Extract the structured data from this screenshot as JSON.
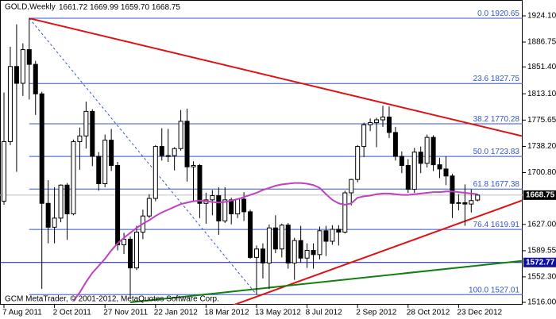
{
  "chart_data": {
    "type": "candlestick",
    "title": "GOLD,Weekly",
    "header_ohlc": [
      "1661.72",
      "1669.99",
      "1659.70",
      "1668.75"
    ],
    "footer": "GCM MetaTrader, © 2001-2012, MetaQuotes Software Corp.",
    "categories": [
      "7 Aug 2011",
      null,
      null,
      null,
      null,
      null,
      null,
      null,
      "2 Oct 2011",
      null,
      null,
      null,
      null,
      null,
      null,
      null,
      "27 Nov 2011",
      null,
      null,
      null,
      null,
      null,
      null,
      null,
      "22 Jan 2012",
      null,
      null,
      null,
      null,
      null,
      null,
      null,
      "18 Mar 2012",
      null,
      null,
      null,
      null,
      null,
      null,
      null,
      "13 May 2012",
      null,
      null,
      null,
      null,
      null,
      null,
      null,
      "8 Jul 2012",
      null,
      null,
      null,
      null,
      null,
      null,
      null,
      "2 Sep 2012",
      null,
      null,
      null,
      null,
      null,
      null,
      null,
      "28 Oct 2012",
      null,
      null,
      null,
      null,
      null,
      null,
      null,
      "23 Dec 2012",
      null,
      null,
      null
    ],
    "open": [
      1660,
      1745,
      1852,
      1828,
      1876,
      1855,
      1813,
      1657,
      1623,
      1636,
      1683,
      1642,
      1745,
      1753,
      1788,
      1724,
      1685,
      1747,
      1711,
      1598,
      1606,
      1565,
      1616,
      1639,
      1664,
      1738,
      1725,
      1725,
      1735,
      1774,
      1709,
      1711,
      1657,
      1662,
      1668,
      1632,
      1662,
      1642,
      1663,
      1645,
      1580,
      1592,
      1572,
      1622,
      1592,
      1626,
      1572,
      1604,
      1579,
      1590,
      1584,
      1618,
      1603,
      1620,
      1616,
      1672,
      1691,
      1738,
      1769,
      1772,
      1776,
      1780,
      1758,
      1724,
      1711,
      1677,
      1730,
      1714,
      1751,
      1712,
      1706,
      1696,
      1657,
      1658,
      1656,
      1661.72
    ],
    "high": [
      1815,
      1880,
      1912,
      1885,
      1920.65,
      1860,
      1816,
      1690,
      1680,
      1684,
      1686,
      1748,
      1765,
      1802,
      1791,
      1730,
      1755,
      1763,
      1716,
      1615,
      1610,
      1625,
      1648,
      1670,
      1740,
      1764,
      1763,
      1737,
      1790,
      1792,
      1717,
      1713,
      1672,
      1676,
      1680,
      1680,
      1665,
      1664,
      1673,
      1648,
      1597,
      1600,
      1627,
      1640,
      1628,
      1629,
      1608,
      1625,
      1600,
      1600,
      1624,
      1625,
      1626,
      1626,
      1675,
      1692,
      1740,
      1772,
      1778,
      1779,
      1796,
      1795,
      1766,
      1731,
      1720,
      1736,
      1738,
      1755,
      1754,
      1722,
      1724,
      1699,
      1670,
      1684,
      1677,
      1669.99
    ],
    "low": [
      1655,
      1740,
      1702,
      1810,
      1805,
      1783,
      1535,
      1600,
      1600,
      1630,
      1605,
      1640,
      1705,
      1735,
      1710,
      1675,
      1680,
      1703,
      1590,
      1585,
      1523,
      1562,
      1606,
      1636,
      1660,
      1718,
      1716,
      1704,
      1732,
      1688,
      1660,
      1636,
      1628,
      1640,
      1612,
      1629,
      1627,
      1636,
      1632,
      1578,
      1527,
      1550,
      1535,
      1586,
      1580,
      1564,
      1548,
      1573,
      1565,
      1564,
      1577,
      1582,
      1598,
      1597,
      1614,
      1654,
      1687,
      1723,
      1760,
      1737,
      1766,
      1750,
      1718,
      1700,
      1672,
      1672,
      1700,
      1708,
      1703,
      1693,
      1683,
      1636,
      1647,
      1625,
      1644,
      1659.7
    ],
    "close": [
      1745,
      1852,
      1828,
      1876,
      1855,
      1813,
      1657,
      1623,
      1636,
      1683,
      1642,
      1745,
      1753,
      1788,
      1724,
      1685,
      1747,
      1711,
      1598,
      1606,
      1565,
      1616,
      1639,
      1664,
      1738,
      1725,
      1725,
      1735,
      1774,
      1709,
      1711,
      1657,
      1662,
      1668,
      1632,
      1662,
      1642,
      1663,
      1645,
      1580,
      1592,
      1572,
      1622,
      1592,
      1626,
      1572,
      1604,
      1579,
      1590,
      1584,
      1618,
      1603,
      1620,
      1616,
      1672,
      1691,
      1738,
      1769,
      1772,
      1776,
      1780,
      1758,
      1724,
      1711,
      1677,
      1730,
      1714,
      1751,
      1712,
      1706,
      1696,
      1657,
      1658,
      1656,
      1661,
      1668.75
    ],
    "moving_average": {
      "color": "#c040c0",
      "values": [
        null,
        null,
        null,
        null,
        null,
        null,
        null,
        null,
        null,
        null,
        null,
        1518,
        1530,
        1545,
        1558,
        1568,
        1578,
        1590,
        1600,
        1608,
        1615,
        1622,
        1628,
        1633,
        1639,
        1644,
        1648,
        1652,
        1656,
        1658,
        1660,
        1661,
        1660,
        1659,
        1658,
        1659,
        1661,
        1663,
        1666,
        1669,
        1672,
        1676,
        1679,
        1682,
        1684,
        1685,
        1686,
        1686,
        1685,
        1683,
        1679,
        1670,
        1662,
        1657,
        1655,
        1657,
        1665,
        1667,
        1668,
        1670,
        1671,
        1671,
        1670,
        1669,
        1669,
        1670,
        1671,
        1672,
        1673,
        1673,
        1674,
        1674,
        1673,
        1672,
        1671,
        1670
      ]
    },
    "trendlines": [
      {
        "color": "#e01010",
        "x": [
          4,
          82
        ],
        "values": [
          1920.65,
          1753
        ]
      },
      {
        "color": "#e01010",
        "x": [
          36,
          82
        ],
        "values": [
          1511,
          1661
        ]
      },
      {
        "color": "#108010",
        "x": [
          20,
          82
        ],
        "values": [
          1516,
          1575
        ]
      },
      {
        "color": "#3355cc",
        "dashed": true,
        "x": [
          4,
          40
        ],
        "values": [
          1920.65,
          1527.01
        ]
      }
    ],
    "fibonacci": {
      "color": "#3355cc",
      "start": 4,
      "levels": [
        {
          "level": "0.0",
          "value": 1920.65
        },
        {
          "level": "23.6",
          "value": 1827.75
        },
        {
          "level": "38.2",
          "value": 1770.28
        },
        {
          "level": "50.0",
          "value": 1723.83
        },
        {
          "level": "61.8",
          "value": 1677.38
        },
        {
          "level": "76.4",
          "value": 1619.91
        },
        {
          "level": "100.0",
          "value": 1527.01
        }
      ]
    },
    "hline": {
      "value": 1572.77,
      "color": "#1010a0"
    },
    "ylim": [
      1512.6,
      1946.7
    ],
    "yticks": [
      {
        "value": 1924.1,
        "label": "1924.10"
      },
      1886.75,
      {
        "value": 1851.4,
        "label": "1851.40"
      },
      {
        "value": 1813.1,
        "label": "1813.10"
      },
      1775.65,
      {
        "value": 1738.2,
        "label": "1738.20"
      },
      {
        "value": 1700.8,
        "label": "1700.80"
      },
      {
        "value": 1627,
        "label": "1627.00"
      },
      1589.55,
      {
        "value": 1552.3,
        "label": "1552.30"
      },
      {
        "value": 1516,
        "label": "1516.00"
      }
    ],
    "bull_color": "#ffffff",
    "bear_color": "#000000"
  }
}
